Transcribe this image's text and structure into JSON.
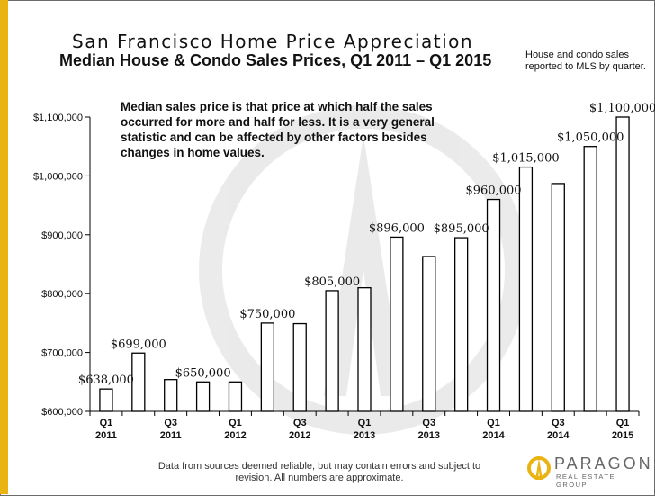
{
  "title": "San Francisco Home Price Appreciation",
  "subtitle": "Median House & Condo Sales Prices, Q1 2011 – Q1 2015",
  "side_note": [
    "House and condo sales",
    "reported to MLS by quarter."
  ],
  "callout": [
    "Median sales price is that price at which half the sales",
    "occurred for more and half for less. It is a very general",
    "statistic and can be affected by other factors besides",
    "changes in home values."
  ],
  "footer": [
    "Data from sources deemed reliable, but may contain errors and subject to",
    "revision.  All numbers are approximate."
  ],
  "logo": {
    "name": "PARAGON",
    "tagline": "REAL ESTATE GROUP"
  },
  "colors": {
    "accent_bar": "#e9b312",
    "bar_fill": "#ffffff",
    "bar_stroke": "#000000"
  },
  "chart_data": {
    "type": "bar",
    "categories": [
      "Q1 2011",
      "Q2 2011",
      "Q3 2011",
      "Q4 2011",
      "Q1 2012",
      "Q2 2012",
      "Q3 2012",
      "Q4 2012",
      "Q1 2013",
      "Q2 2013",
      "Q3 2013",
      "Q4 2013",
      "Q1 2014",
      "Q2 2014",
      "Q3 2014",
      "Q4 2014",
      "Q1 2015"
    ],
    "values": [
      638000,
      699000,
      654000,
      650000,
      650000,
      750000,
      749000,
      805000,
      810000,
      896000,
      863000,
      895000,
      960000,
      1015000,
      987000,
      1050000,
      1100000
    ],
    "data_labels": [
      "$638,000",
      "$699,000",
      "",
      "$650,000",
      "",
      "$750,000",
      "",
      "$805,000",
      "",
      "$896,000",
      "",
      "$895,000",
      "$960,000",
      "$1,015,000",
      "",
      "$1,050,000",
      "$1,100,000"
    ],
    "x_tick_labels": [
      {
        "line1": "Q1",
        "line2": "2011"
      },
      {
        "line1": "",
        "line2": ""
      },
      {
        "line1": "Q3",
        "line2": "2011"
      },
      {
        "line1": "",
        "line2": ""
      },
      {
        "line1": "Q1",
        "line2": "2012"
      },
      {
        "line1": "",
        "line2": ""
      },
      {
        "line1": "Q3",
        "line2": "2012"
      },
      {
        "line1": "",
        "line2": ""
      },
      {
        "line1": "Q1",
        "line2": "2013"
      },
      {
        "line1": "",
        "line2": ""
      },
      {
        "line1": "Q3",
        "line2": "2013"
      },
      {
        "line1": "",
        "line2": ""
      },
      {
        "line1": "Q1",
        "line2": "2014"
      },
      {
        "line1": "",
        "line2": ""
      },
      {
        "line1": "Q3",
        "line2": "2014"
      },
      {
        "line1": "",
        "line2": ""
      },
      {
        "line1": "Q1",
        "line2": "2015"
      }
    ],
    "y_ticks": [
      600000,
      700000,
      800000,
      900000,
      1000000,
      1100000
    ],
    "y_tick_labels": [
      "$600,000",
      "$700,000",
      "$800,000",
      "$900,000",
      "$1,000,000",
      "$1,100,000"
    ],
    "ylim": [
      600000,
      1100000
    ],
    "grid": false,
    "legend": "none"
  }
}
